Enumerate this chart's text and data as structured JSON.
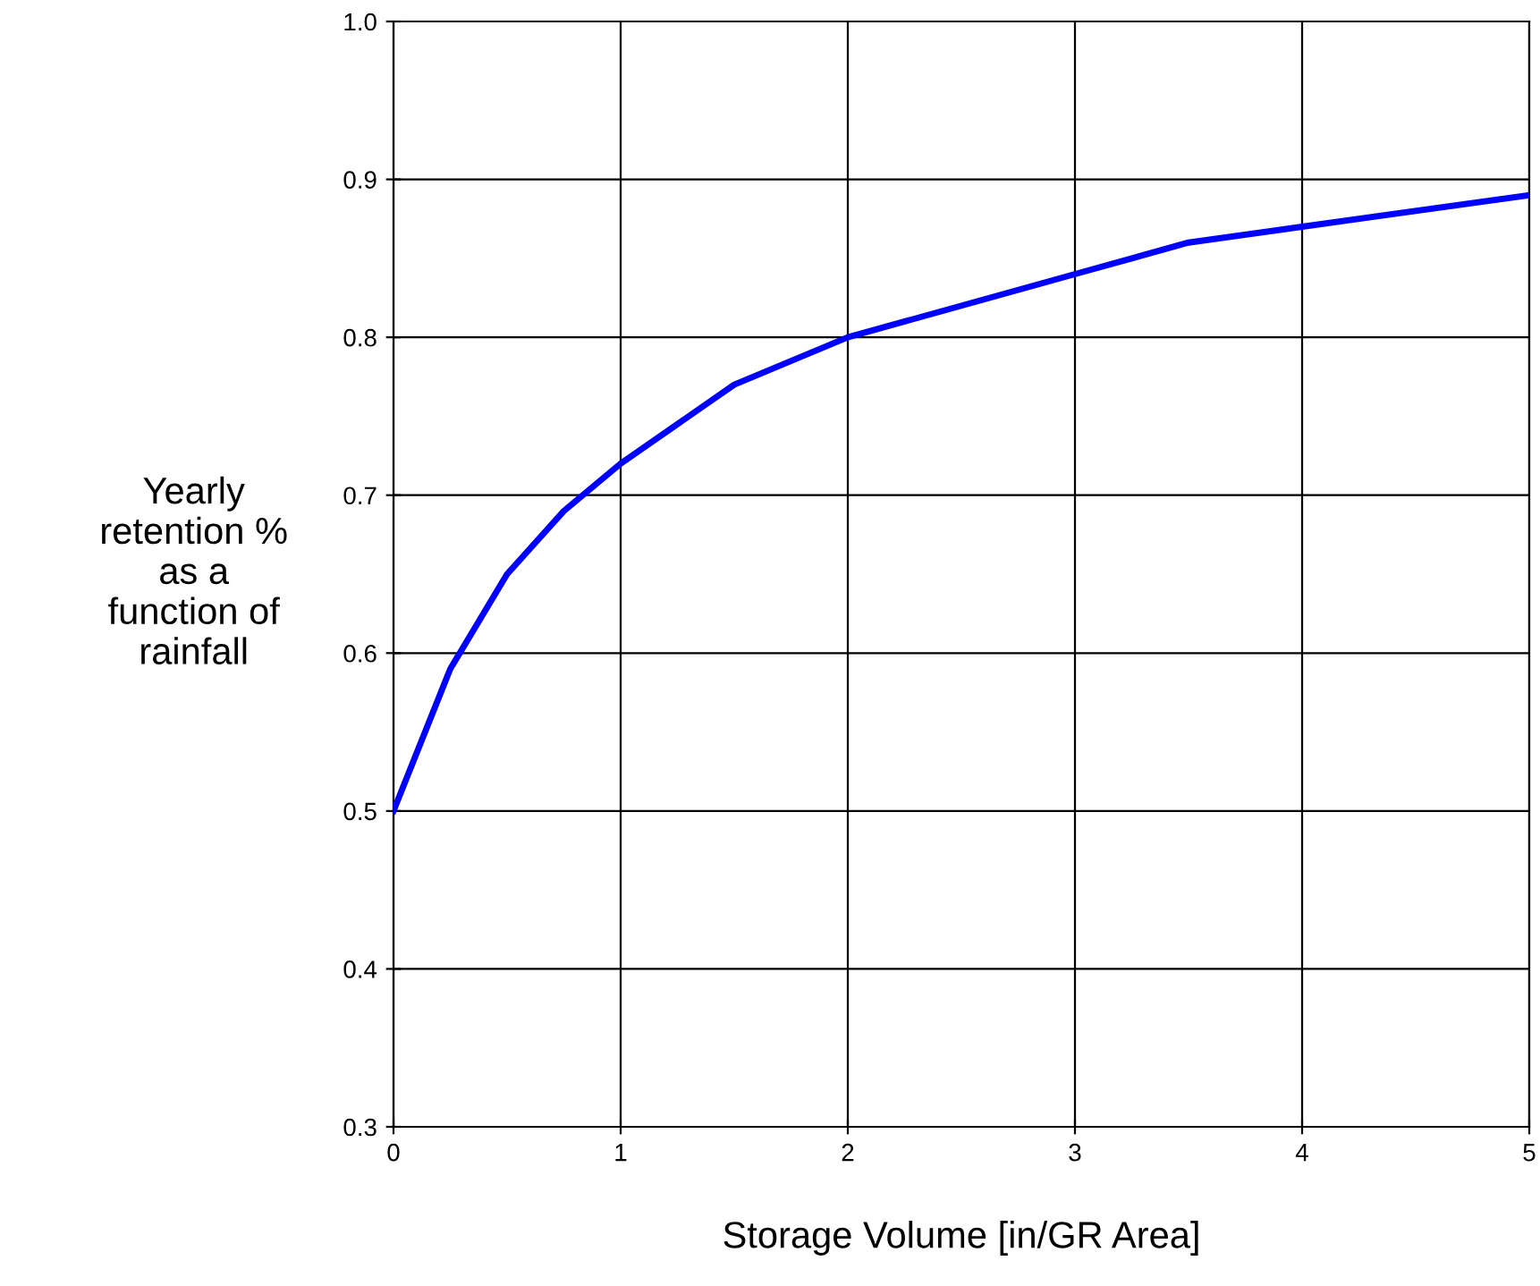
{
  "chart_data": {
    "type": "line",
    "xlabel": "Storage Volume [in/GR Area]",
    "ylabel": "Yearly\nretention %\nas a\nfunction of\nrainfall",
    "x": [
      0,
      0.25,
      0.5,
      0.75,
      1,
      1.5,
      2,
      3,
      3.5,
      4,
      5
    ],
    "series": [
      {
        "color": "#0000ff",
        "values": [
          0.5,
          0.59,
          0.65,
          0.69,
          0.72,
          0.77,
          0.8,
          0.84,
          0.86,
          0.87,
          0.89
        ]
      }
    ],
    "xlim": [
      0,
      5
    ],
    "xticks": [
      0,
      1,
      2,
      3,
      4,
      5
    ],
    "ylim": [
      0.3,
      1.0
    ],
    "yticks": [
      {
        "value": 0.3,
        "label": "0.3"
      },
      {
        "value": 0.4,
        "label": "0.4"
      },
      {
        "value": 0.5,
        "label": "0.5"
      },
      {
        "value": 0.6,
        "label": "0.6"
      },
      {
        "value": 0.7,
        "label": "0.7"
      },
      {
        "value": 0.8,
        "label": "0.8"
      },
      {
        "value": 0.9,
        "label": "0.9"
      },
      {
        "value": 1.0,
        "label": "1.0"
      }
    ],
    "grid": true,
    "marker": "none",
    "line_style": "solid"
  }
}
